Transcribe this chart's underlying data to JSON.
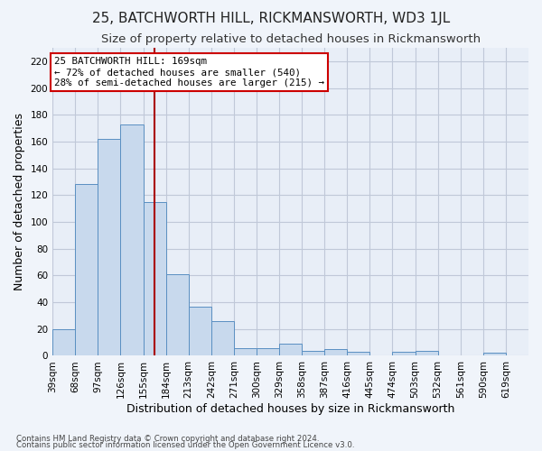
{
  "title": "25, BATCHWORTH HILL, RICKMANSWORTH, WD3 1JL",
  "subtitle": "Size of property relative to detached houses in Rickmansworth",
  "xlabel": "Distribution of detached houses by size in Rickmansworth",
  "ylabel": "Number of detached properties",
  "footnote1": "Contains HM Land Registry data © Crown copyright and database right 2024.",
  "footnote2": "Contains public sector information licensed under the Open Government Licence v3.0.",
  "annotation_title": "25 BATCHWORTH HILL: 169sqm",
  "annotation_line1": "← 72% of detached houses are smaller (540)",
  "annotation_line2": "28% of semi-detached houses are larger (215) →",
  "bar_color": "#c8d9ed",
  "bar_edge_color": "#5a8fc2",
  "vline_x": 169,
  "vline_color": "#aa0000",
  "bins": [
    39,
    68,
    97,
    126,
    155,
    184,
    213,
    242,
    271,
    300,
    329,
    358,
    387,
    416,
    445,
    474,
    503,
    532,
    561,
    590,
    619
  ],
  "bin_labels": [
    "39sqm",
    "68sqm",
    "97sqm",
    "126sqm",
    "155sqm",
    "184sqm",
    "213sqm",
    "242sqm",
    "271sqm",
    "300sqm",
    "329sqm",
    "358sqm",
    "387sqm",
    "416sqm",
    "445sqm",
    "474sqm",
    "503sqm",
    "532sqm",
    "561sqm",
    "590sqm",
    "619sqm"
  ],
  "values": [
    20,
    128,
    162,
    173,
    115,
    61,
    37,
    26,
    6,
    6,
    9,
    4,
    5,
    3,
    0,
    3,
    4,
    0,
    0,
    2
  ],
  "ylim": [
    0,
    230
  ],
  "yticks": [
    0,
    20,
    40,
    60,
    80,
    100,
    120,
    140,
    160,
    180,
    200,
    220
  ],
  "bg_color": "#f0f4fa",
  "plot_bg_color": "#e8eef7",
  "grid_color": "#c0c8d8",
  "title_fontsize": 11,
  "subtitle_fontsize": 9.5,
  "axis_label_fontsize": 9,
  "tick_fontsize": 7.5,
  "annotation_box_color": "#ffffff",
  "annotation_box_edge": "#cc0000"
}
